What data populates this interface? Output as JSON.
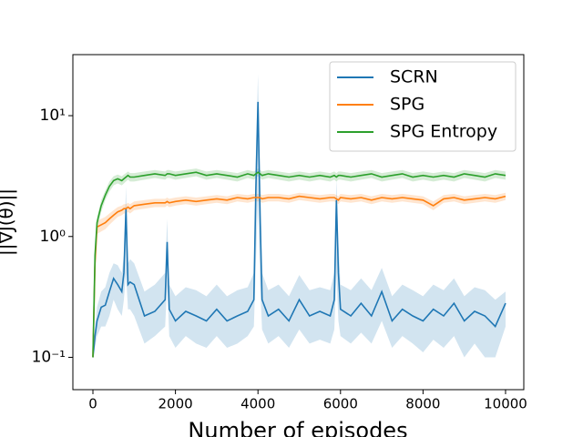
{
  "chart_data": {
    "type": "line",
    "y_label": "||∇J(θ)||",
    "x_label": "Number of episodes",
    "x": [
      0,
      50,
      100,
      200,
      300,
      400,
      500,
      600,
      700,
      750,
      800,
      850,
      900,
      1000,
      1250,
      1500,
      1750,
      1800,
      1850,
      2000,
      2250,
      2500,
      2750,
      3000,
      3250,
      3500,
      3750,
      3900,
      3950,
      4000,
      4050,
      4100,
      4250,
      4500,
      4750,
      5000,
      5250,
      5500,
      5750,
      5850,
      5900,
      5950,
      6000,
      6250,
      6500,
      6750,
      7000,
      7250,
      7500,
      7750,
      8000,
      8250,
      8500,
      8750,
      9000,
      9250,
      9500,
      9750,
      10000
    ],
    "series": [
      {
        "name": "SCRN",
        "color": "#1f77b4",
        "values": [
          0.1,
          0.15,
          0.2,
          0.26,
          0.27,
          0.35,
          0.45,
          0.4,
          0.35,
          0.5,
          1.7,
          0.4,
          0.42,
          0.4,
          0.22,
          0.24,
          0.3,
          0.9,
          0.25,
          0.2,
          0.24,
          0.22,
          0.2,
          0.25,
          0.2,
          0.22,
          0.24,
          0.3,
          2.5,
          13,
          1.5,
          0.3,
          0.22,
          0.25,
          0.2,
          0.3,
          0.22,
          0.24,
          0.22,
          0.3,
          2.0,
          0.5,
          0.25,
          0.22,
          0.28,
          0.22,
          0.35,
          0.2,
          0.25,
          0.22,
          0.2,
          0.25,
          0.22,
          0.28,
          0.2,
          0.24,
          0.22,
          0.18,
          0.28
        ],
        "lower": [
          0.1,
          0.12,
          0.15,
          0.18,
          0.18,
          0.22,
          0.3,
          0.25,
          0.22,
          0.3,
          0.5,
          0.25,
          0.25,
          0.22,
          0.13,
          0.15,
          0.18,
          0.4,
          0.15,
          0.12,
          0.15,
          0.13,
          0.12,
          0.15,
          0.12,
          0.13,
          0.15,
          0.18,
          0.6,
          2,
          0.4,
          0.17,
          0.13,
          0.15,
          0.12,
          0.17,
          0.13,
          0.14,
          0.13,
          0.17,
          0.5,
          0.2,
          0.15,
          0.13,
          0.16,
          0.13,
          0.2,
          0.12,
          0.15,
          0.13,
          0.11,
          0.14,
          0.12,
          0.15,
          0.1,
          0.13,
          0.1,
          0.1,
          0.18
        ],
        "upper": [
          0.1,
          0.18,
          0.26,
          0.35,
          0.38,
          0.5,
          0.6,
          0.58,
          0.5,
          0.7,
          2.6,
          0.6,
          0.65,
          0.6,
          0.35,
          0.4,
          0.5,
          1.4,
          0.4,
          0.32,
          0.38,
          0.36,
          0.32,
          0.4,
          0.32,
          0.36,
          0.38,
          0.5,
          5,
          22,
          3,
          0.5,
          0.36,
          0.4,
          0.32,
          0.48,
          0.36,
          0.38,
          0.36,
          0.5,
          3,
          0.9,
          0.4,
          0.36,
          0.45,
          0.36,
          0.55,
          0.32,
          0.4,
          0.36,
          0.32,
          0.4,
          0.36,
          0.45,
          0.32,
          0.38,
          0.36,
          0.3,
          0.35
        ]
      },
      {
        "name": "SPG",
        "color": "#ff7f0e",
        "values": [
          0.1,
          0.6,
          1.2,
          1.25,
          1.3,
          1.4,
          1.5,
          1.6,
          1.65,
          1.7,
          1.7,
          1.75,
          1.7,
          1.8,
          1.85,
          1.9,
          1.9,
          1.95,
          1.9,
          1.95,
          2.0,
          1.95,
          2.0,
          2.05,
          2.0,
          2.1,
          2.05,
          2.1,
          2.1,
          2.1,
          2.1,
          2.05,
          2.1,
          2.1,
          2.05,
          2.15,
          2.1,
          2.05,
          2.1,
          2.1,
          2.05,
          2.0,
          2.1,
          2.05,
          2.1,
          2.0,
          2.1,
          2.05,
          2.1,
          2.05,
          2.0,
          1.8,
          2.05,
          2.1,
          2.0,
          2.05,
          2.1,
          2.05,
          2.15
        ],
        "lower": [
          0.1,
          0.5,
          1.05,
          1.1,
          1.15,
          1.25,
          1.35,
          1.45,
          1.5,
          1.55,
          1.55,
          1.6,
          1.55,
          1.65,
          1.7,
          1.75,
          1.75,
          1.8,
          1.75,
          1.8,
          1.85,
          1.8,
          1.85,
          1.9,
          1.85,
          1.95,
          1.9,
          1.95,
          1.95,
          1.95,
          1.95,
          1.9,
          1.95,
          1.95,
          1.9,
          2.0,
          1.95,
          1.9,
          1.95,
          1.95,
          1.9,
          1.85,
          1.95,
          1.9,
          1.95,
          1.85,
          1.95,
          1.9,
          1.95,
          1.9,
          1.85,
          1.65,
          1.9,
          1.95,
          1.85,
          1.9,
          1.95,
          1.9,
          2.0
        ],
        "upper": [
          0.1,
          0.7,
          1.35,
          1.4,
          1.45,
          1.55,
          1.65,
          1.75,
          1.8,
          1.85,
          1.85,
          1.9,
          1.85,
          1.95,
          2.0,
          2.05,
          2.05,
          2.1,
          2.05,
          2.1,
          2.15,
          2.1,
          2.15,
          2.2,
          2.15,
          2.25,
          2.2,
          2.25,
          2.25,
          2.25,
          2.25,
          2.2,
          2.25,
          2.25,
          2.2,
          2.3,
          2.25,
          2.2,
          2.25,
          2.25,
          2.2,
          2.15,
          2.25,
          2.2,
          2.25,
          2.15,
          2.25,
          2.2,
          2.25,
          2.2,
          2.15,
          1.95,
          2.2,
          2.25,
          2.15,
          2.2,
          2.25,
          2.2,
          2.3
        ]
      },
      {
        "name": "SPG Entropy",
        "color": "#2ca02c",
        "values": [
          0.1,
          0.7,
          1.3,
          1.8,
          2.2,
          2.6,
          2.9,
          3.0,
          2.9,
          3.0,
          3.1,
          3.2,
          3.1,
          3.1,
          3.2,
          3.3,
          3.2,
          3.3,
          3.3,
          3.2,
          3.3,
          3.4,
          3.2,
          3.3,
          3.2,
          3.1,
          3.3,
          3.2,
          3.3,
          3.4,
          3.3,
          3.2,
          3.3,
          3.2,
          3.1,
          3.2,
          3.1,
          3.2,
          3.1,
          3.2,
          3.1,
          3.2,
          3.2,
          3.1,
          3.2,
          3.3,
          3.1,
          3.2,
          3.3,
          3.1,
          3.2,
          3.1,
          3.2,
          3.1,
          3.3,
          3.2,
          3.1,
          3.3,
          3.2
        ],
        "lower": [
          0.1,
          0.6,
          1.15,
          1.6,
          2.0,
          2.35,
          2.65,
          2.75,
          2.65,
          2.75,
          2.85,
          2.95,
          2.85,
          2.85,
          2.95,
          3.05,
          2.95,
          3.05,
          3.05,
          2.95,
          3.05,
          3.15,
          2.95,
          3.05,
          2.95,
          2.85,
          3.05,
          2.95,
          3.05,
          3.15,
          3.05,
          2.95,
          3.05,
          2.95,
          2.85,
          2.95,
          2.85,
          2.95,
          2.85,
          2.95,
          2.85,
          2.95,
          2.95,
          2.85,
          2.95,
          3.05,
          2.85,
          2.95,
          3.05,
          2.85,
          2.95,
          2.85,
          2.95,
          2.85,
          3.05,
          2.95,
          2.85,
          3.05,
          2.95
        ],
        "upper": [
          0.1,
          0.8,
          1.45,
          2.0,
          2.4,
          2.85,
          3.15,
          3.25,
          3.15,
          3.25,
          3.35,
          3.45,
          3.35,
          3.35,
          3.45,
          3.55,
          3.45,
          3.55,
          3.55,
          3.45,
          3.55,
          3.65,
          3.45,
          3.55,
          3.45,
          3.35,
          3.55,
          3.45,
          3.55,
          3.65,
          3.55,
          3.45,
          3.55,
          3.45,
          3.35,
          3.45,
          3.35,
          3.45,
          3.35,
          3.45,
          3.35,
          3.45,
          3.45,
          3.35,
          3.45,
          3.55,
          3.35,
          3.45,
          3.55,
          3.35,
          3.45,
          3.35,
          3.45,
          3.35,
          3.55,
          3.45,
          3.35,
          3.55,
          3.45
        ]
      }
    ],
    "xlim": [
      -486,
      10442
    ],
    "xticks": [
      0,
      2000,
      4000,
      6000,
      8000,
      10000
    ],
    "ylim": [
      0.054,
      32
    ],
    "yscale": "log",
    "yticks": [
      {
        "value": 0.1,
        "label": "10⁻¹"
      },
      {
        "value": 1,
        "label": "10⁰"
      },
      {
        "value": 10,
        "label": "10¹"
      }
    ],
    "legend": "upper right"
  }
}
